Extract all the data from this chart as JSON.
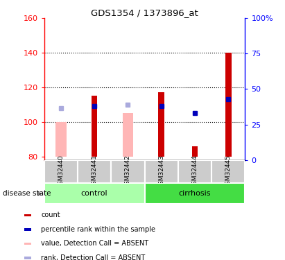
{
  "title": "GDS1354 / 1373896_at",
  "samples": [
    "GSM32440",
    "GSM32441",
    "GSM32442",
    "GSM32443",
    "GSM32444",
    "GSM32445"
  ],
  "groups": [
    {
      "label": "control",
      "indices": [
        0,
        1,
        2
      ],
      "color": "#AAFFAA"
    },
    {
      "label": "cirrhosis",
      "indices": [
        3,
        4,
        5
      ],
      "color": "#44DD44"
    }
  ],
  "ylim_left": [
    78,
    160
  ],
  "ylim_right": [
    0,
    100
  ],
  "yticks_left": [
    80,
    100,
    120,
    140,
    160
  ],
  "yticks_right": [
    0,
    25,
    50,
    75,
    100
  ],
  "ytick_labels_right": [
    "0",
    "25",
    "50",
    "75",
    "100%"
  ],
  "bar_bottom": 80,
  "red_bars": [
    null,
    115,
    null,
    117,
    86,
    140
  ],
  "pink_bars": [
    100,
    null,
    105,
    null,
    null,
    null
  ],
  "blue_squares": [
    null,
    109,
    null,
    109,
    105,
    113
  ],
  "light_blue_squares": [
    108,
    null,
    110,
    null,
    null,
    null
  ],
  "red_bar_color": "#CC0000",
  "pink_bar_color": "#FFB6B6",
  "blue_sq_color": "#0000BB",
  "light_blue_sq_color": "#AAAADD",
  "red_bar_width": 0.18,
  "pink_bar_width": 0.32,
  "legend_items": [
    {
      "label": "count",
      "color": "#CC0000"
    },
    {
      "label": "percentile rank within the sample",
      "color": "#0000BB"
    },
    {
      "label": "value, Detection Call = ABSENT",
      "color": "#FFB6B6"
    },
    {
      "label": "rank, Detection Call = ABSENT",
      "color": "#AAAADD"
    }
  ],
  "grid_lines": [
    100,
    120,
    140
  ],
  "label_bg_color": "#CCCCCC",
  "label_border_color": "#FFFFFF"
}
